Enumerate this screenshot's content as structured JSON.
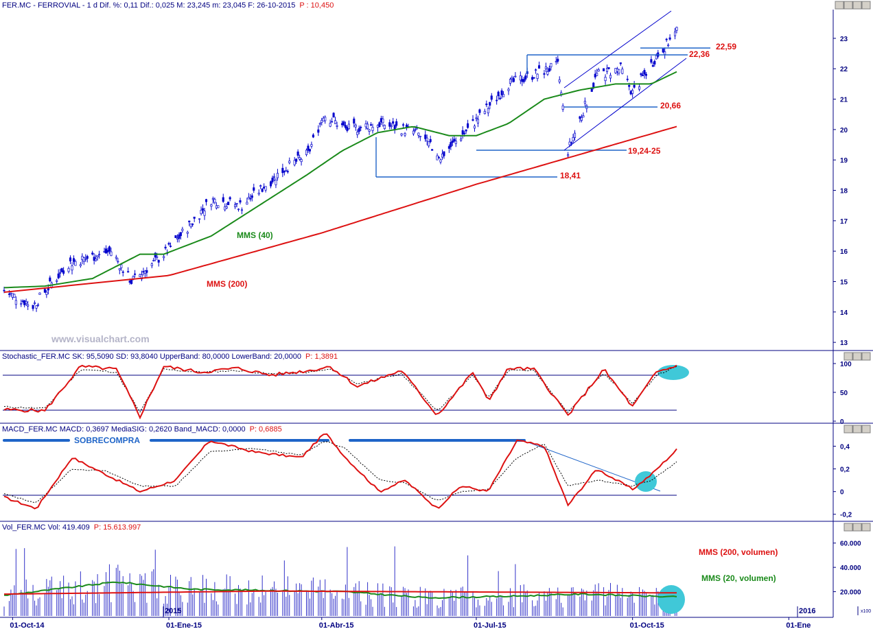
{
  "colors": {
    "axis": "#000080",
    "price": "#0000cc",
    "mms40": "#1a8a1a",
    "mms200": "#dd1111",
    "level": "#1e64c8",
    "highlight": "#40c8d8",
    "osc": "#dd1111",
    "sobrecompra": "#1e64c8"
  },
  "panels": {
    "price": {
      "header": {
        "prefix": "FER.MC - FERROVIAL - 1 d Dif. %: 0,11 Dif.: 0,025 M: 23,245 m: 23,045 F: 26-10-2015",
        "p": "P : 10,450"
      },
      "ticks": [
        "13",
        "14",
        "15",
        "16",
        "17",
        "18",
        "19",
        "20",
        "21",
        "22",
        "23"
      ],
      "watermark": "www.visualchart.com"
    },
    "stoch": {
      "header": {
        "prefix": "Stochastic_FER.MC SK: 95,5090 SD: 93,8040 UpperBand: 80,0000 LowerBand: 20,0000",
        "p": "P: 1,3891"
      },
      "ticks": [
        "0",
        "50",
        "100"
      ]
    },
    "macd": {
      "header": {
        "prefix": "MACD_FER.MC MACD: 0,3697 MediaSIG: 0,2620 Band_MACD: 0,0000",
        "p": "P: 0,6885"
      },
      "ticks": [
        "-0,2",
        "0",
        "0,2",
        "0,4"
      ]
    },
    "vol": {
      "header": {
        "prefix": "Vol_FER.MC Vol: 419.409",
        "p": "P: 15.613.997"
      },
      "ticks": [
        "20.000",
        "40.000",
        "60.000"
      ],
      "multiplier": "x100"
    }
  },
  "annotations": {
    "mms40": "MMS (40)",
    "mms200": "MMS (200)",
    "lvl_2259": "22,59",
    "lvl_2236": "22,36",
    "lvl_2066": "20,66",
    "lvl_1924": "19,24-25",
    "lvl_1841": "18,41",
    "sobrecompra": "SOBRECOMPRA",
    "vol_mms200": "MMS (200, volumen)",
    "vol_mms20": "MMS (20, volumen)"
  },
  "x_axis": {
    "labels": [
      "01-Oct-14",
      "01-Ene-15",
      "01-Abr-15",
      "01-Jul-15",
      "01-Oct-15",
      "01-Ene"
    ],
    "year_markers": [
      "2015",
      "2016"
    ]
  },
  "chart_data": [
    {
      "type": "line",
      "panel": "price",
      "ylim": [
        12.8,
        23.9
      ],
      "x_dates": [
        "2014-09-26",
        "2015-10-27"
      ],
      "series": [
        {
          "role": "price",
          "x": [
            "2014-09-26",
            "2014-10-13",
            "2014-11-03",
            "2014-11-28",
            "2014-12-10",
            "2014-12-31",
            "2015-01-26",
            "2015-02-13",
            "2015-03-10",
            "2015-03-24",
            "2015-04-02",
            "2015-04-16",
            "2015-05-06",
            "2015-05-27",
            "2015-06-10",
            "2015-07-01",
            "2015-07-20",
            "2015-08-18",
            "2015-08-24",
            "2015-09-10",
            "2015-09-24",
            "2015-10-01",
            "2015-10-15",
            "2015-10-27"
          ],
          "values": [
            14.7,
            14.2,
            15.6,
            16.0,
            15.0,
            16.0,
            17.7,
            17.5,
            18.7,
            19.2,
            20.5,
            20.0,
            20.2,
            19.9,
            19.1,
            20.3,
            21.5,
            22.1,
            19.3,
            21.8,
            22.0,
            21.2,
            22.4,
            23.2
          ]
        },
        {
          "name": "MMS (40)",
          "x": [
            "2014-09-26",
            "2014-10-20",
            "2014-11-17",
            "2014-12-15",
            "2014-12-29",
            "2015-01-26",
            "2015-02-23",
            "2015-03-23",
            "2015-04-13",
            "2015-05-04",
            "2015-05-25",
            "2015-06-15",
            "2015-07-01",
            "2015-07-20",
            "2015-08-10",
            "2015-08-31",
            "2015-09-21",
            "2015-10-12",
            "2015-10-27"
          ],
          "values": [
            14.8,
            14.85,
            15.1,
            15.9,
            15.9,
            16.5,
            17.5,
            18.5,
            19.3,
            19.9,
            20.1,
            19.8,
            19.8,
            20.2,
            21.0,
            21.3,
            21.5,
            21.5,
            21.9
          ]
        },
        {
          "name": "MMS (200)",
          "x": [
            "2014-09-26",
            "2015-01-01",
            "2015-04-01",
            "2015-07-01",
            "2015-10-27"
          ],
          "values": [
            14.65,
            15.2,
            16.6,
            18.2,
            20.1
          ]
        }
      ]
    },
    {
      "type": "line",
      "panel": "stoch",
      "ylim": [
        0,
        100
      ],
      "bands": [
        20,
        80
      ],
      "x": [
        "2014-09-26",
        "2014-10-20",
        "2014-11-10",
        "2014-12-01",
        "2014-12-15",
        "2014-12-29",
        "2015-01-20",
        "2015-02-10",
        "2015-03-02",
        "2015-03-25",
        "2015-04-06",
        "2015-04-22",
        "2015-05-18",
        "2015-06-08",
        "2015-06-29",
        "2015-07-08",
        "2015-07-20",
        "2015-08-04",
        "2015-08-24",
        "2015-09-14",
        "2015-10-01",
        "2015-10-15",
        "2015-10-27"
      ],
      "series": [
        {
          "name": "SK",
          "values": [
            20,
            18,
            95,
            90,
            8,
            95,
            85,
            92,
            80,
            88,
            95,
            60,
            88,
            10,
            85,
            35,
            92,
            90,
            10,
            90,
            25,
            85,
            96
          ]
        },
        {
          "name": "SD",
          "values": [
            25,
            22,
            90,
            85,
            15,
            90,
            85,
            88,
            82,
            85,
            90,
            65,
            82,
            18,
            80,
            40,
            88,
            88,
            15,
            85,
            30,
            80,
            94
          ]
        }
      ]
    },
    {
      "type": "line",
      "panel": "macd",
      "ylim": [
        -0.25,
        0.5
      ],
      "x": [
        "2014-09-26",
        "2014-10-15",
        "2014-11-05",
        "2014-11-25",
        "2014-12-15",
        "2015-01-05",
        "2015-01-25",
        "2015-02-20",
        "2015-03-20",
        "2015-04-03",
        "2015-04-15",
        "2015-05-05",
        "2015-05-20",
        "2015-06-08",
        "2015-06-22",
        "2015-07-08",
        "2015-07-25",
        "2015-08-10",
        "2015-08-24",
        "2015-09-10",
        "2015-10-01",
        "2015-10-12",
        "2015-10-27"
      ],
      "series": [
        {
          "name": "MACD",
          "values": [
            -0.05,
            -0.15,
            0.3,
            0.15,
            0.0,
            0.1,
            0.45,
            0.35,
            0.3,
            0.52,
            0.3,
            0.0,
            0.1,
            -0.15,
            0.05,
            0.0,
            0.45,
            0.4,
            -0.12,
            0.2,
            0.02,
            0.15,
            0.37
          ]
        },
        {
          "name": "MediaSIG",
          "values": [
            -0.02,
            -0.1,
            0.2,
            0.18,
            0.05,
            0.05,
            0.35,
            0.38,
            0.32,
            0.45,
            0.38,
            0.1,
            0.08,
            -0.08,
            0.0,
            0.02,
            0.3,
            0.42,
            0.05,
            0.1,
            0.05,
            0.1,
            0.26
          ]
        }
      ],
      "band": 0
    },
    {
      "type": "bar",
      "panel": "volume",
      "ylim": [
        0,
        70000
      ],
      "unit_multiplier": 100,
      "series": [
        {
          "name": "MMS (20, volumen)",
          "x": [
            "2014-09-26",
            "2014-12-01",
            "2015-01-15",
            "2015-03-01",
            "2015-04-15",
            "2015-06-01",
            "2015-07-15",
            "2015-09-01",
            "2015-10-27"
          ],
          "values": [
            17000,
            28000,
            22000,
            21000,
            20000,
            15000,
            16000,
            18000,
            15613
          ]
        },
        {
          "name": "MMS (200, volumen)",
          "x": [
            "2014-09-26",
            "2015-03-01",
            "2015-10-27"
          ],
          "values": [
            18000,
            20500,
            19000
          ]
        }
      ]
    }
  ]
}
